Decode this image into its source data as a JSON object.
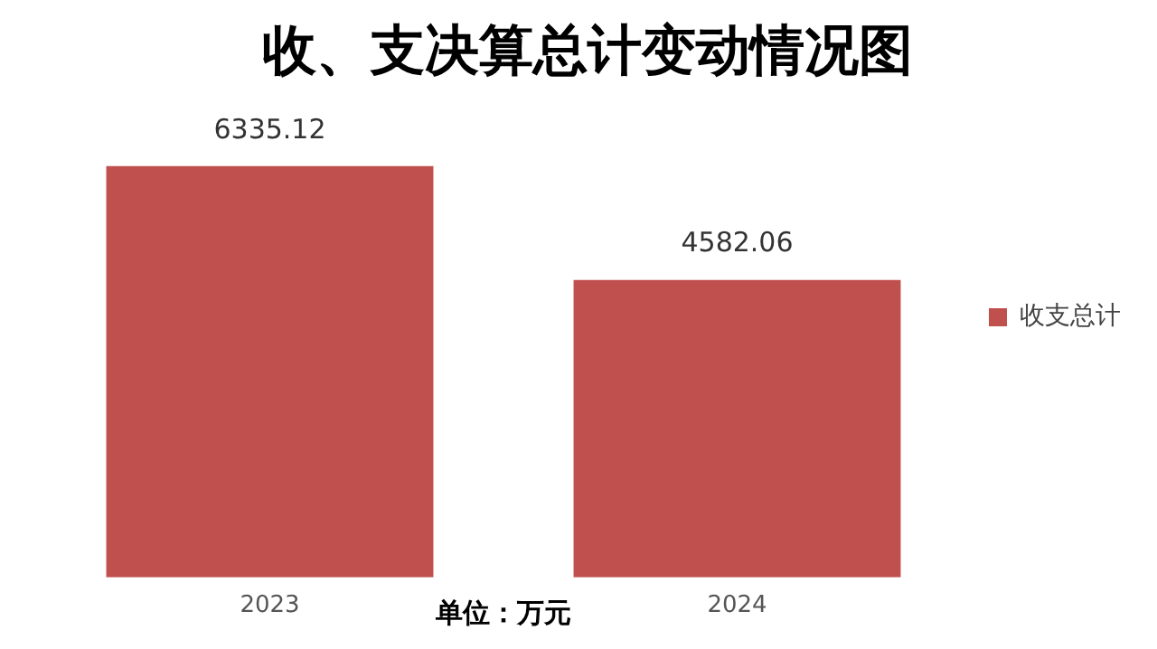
{
  "chart_data": {
    "type": "bar",
    "title": "收、支决算总计变动情况图",
    "categories": [
      "2023",
      "2024"
    ],
    "series": [
      {
        "name": "收支总计",
        "color": "#c0504d",
        "values": [
          6335.12,
          4582.06
        ]
      }
    ],
    "data_labels": true,
    "legend": "right",
    "grid": false,
    "annotations": [
      "单位：万元"
    ]
  }
}
